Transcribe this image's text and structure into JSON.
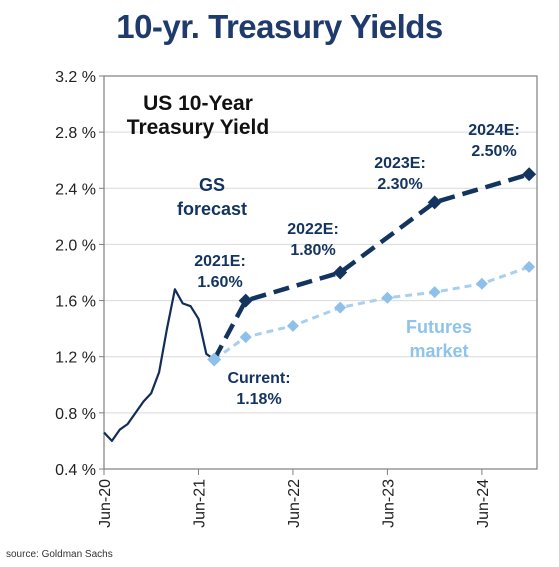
{
  "header": {
    "title": "10-yr. Treasury Yields"
  },
  "footer": {
    "source": "source: Goldman Sachs"
  },
  "colors": {
    "navy": "#13345f",
    "actual": "#142c5a",
    "futures": "#a9cfee",
    "futures_marker": "#8fc0ea",
    "futures_label": "#8ec3ea",
    "frame": "#7f7f7f",
    "grid": "#d9d9d9"
  },
  "chart_data": {
    "type": "line",
    "title": "US 10-Year Treasury Yield",
    "title_lines": [
      "US 10-Year",
      "Treasury Yield"
    ],
    "ylim": [
      0.4,
      3.2
    ],
    "y_ticks": [
      0.4,
      0.8,
      1.2,
      1.6,
      2.0,
      2.4,
      2.8,
      3.2
    ],
    "y_tick_labels": [
      "0.4 %",
      "0.8 %",
      "1.2 %",
      "1.6 %",
      "2.0 %",
      "2.4 %",
      "2.8 %",
      "3.2 %"
    ],
    "x_ticks": [
      "2020-06",
      "2021-06",
      "2022-06",
      "2023-06",
      "2024-06"
    ],
    "x_tick_labels": [
      "Jun-20",
      "Jun-21",
      "Jun-22",
      "Jun-23",
      "Jun-24"
    ],
    "xlim": [
      "2020-06",
      "2025-01"
    ],
    "grid": true,
    "series": [
      {
        "name": "",
        "style": "solid",
        "x": [
          "2020-06",
          "2020-07",
          "2020-08",
          "2020-09",
          "2020-10",
          "2020-11",
          "2020-12",
          "2021-01",
          "2021-02",
          "2021-03",
          "2021-04",
          "2021-05",
          "2021-06",
          "2021-07",
          "2021-08"
        ],
        "y": [
          0.66,
          0.6,
          0.68,
          0.72,
          0.8,
          0.88,
          0.94,
          1.09,
          1.4,
          1.68,
          1.58,
          1.56,
          1.47,
          1.22,
          1.18
        ]
      },
      {
        "name": "GS forecast",
        "label_lines": [
          "GS",
          "forecast"
        ],
        "style": "dashed",
        "x": [
          "2021-08",
          "2021-12",
          "2022-12",
          "2023-12",
          "2024-12"
        ],
        "y": [
          1.18,
          1.6,
          1.8,
          2.3,
          2.5
        ],
        "marker_from": 1
      },
      {
        "name": "Futures market",
        "label_lines": [
          "Futures",
          "market"
        ],
        "style": "dotted",
        "x": [
          "2021-08",
          "2021-12",
          "2022-06",
          "2022-12",
          "2023-06",
          "2023-12",
          "2024-06",
          "2024-12"
        ],
        "y": [
          1.18,
          1.34,
          1.42,
          1.55,
          1.62,
          1.66,
          1.72,
          1.84
        ]
      }
    ],
    "annotations": [
      {
        "lines": [
          "2021E:",
          "1.60%"
        ]
      },
      {
        "lines": [
          "2022E:",
          "1.80%"
        ]
      },
      {
        "lines": [
          "2023E:",
          "2.30%"
        ]
      },
      {
        "lines": [
          "2024E:",
          "2.50%"
        ]
      },
      {
        "lines": [
          "Current:",
          "1.18%"
        ]
      }
    ]
  }
}
